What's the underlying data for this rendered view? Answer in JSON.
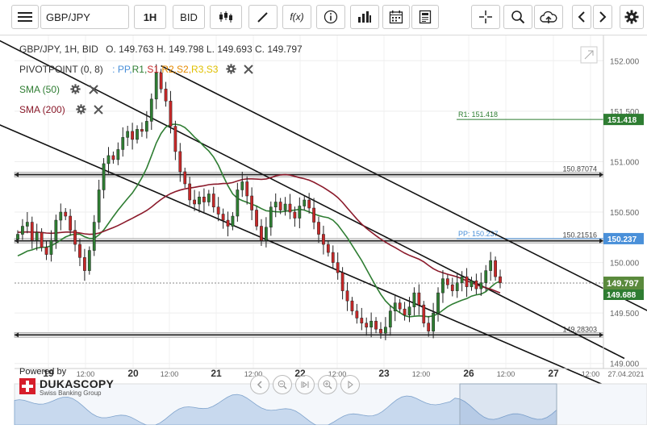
{
  "toolbar": {
    "symbol": "GBP/JPY",
    "timeframe": "1H",
    "price_type": "BID",
    "fx_label": "f(x)"
  },
  "legend": {
    "title_line": "GBP/JPY, 1H, BID",
    "ohlc": "O. 149.763 H. 149.798 L. 149.693 C. 149.797",
    "pivot_label": "PIVOTPOINT (0, 8)",
    "pivot_items": [
      {
        "text": ": PP,",
        "color": "#4a90d9"
      },
      {
        "text": "R1,",
        "color": "#2e7d32"
      },
      {
        "text": "S1,",
        "color": "#c62828"
      },
      {
        "text": "R2,",
        "color": "#e68a00"
      },
      {
        "text": "S2,",
        "color": "#e68a00"
      },
      {
        "text": "R3,",
        "color": "#e0c000"
      },
      {
        "text": "S3",
        "color": "#e0c000"
      }
    ],
    "sma50": "SMA (50)",
    "sma200": "SMA (200)"
  },
  "branding": {
    "powered_by": "Powered by",
    "brand": "DUKASCOPY",
    "sub": "Swiss Banking Group"
  },
  "colors": {
    "sma50": "#2e7d32",
    "sma200": "#8b1a2b",
    "pp": "#4a90d9",
    "r1": "#2e7d32",
    "bull": "#2e7d32",
    "bear": "#c62828"
  },
  "chart_data": {
    "type": "candlestick",
    "ylim": [
      148.95,
      152.25
    ],
    "y_ticks": [
      "149.000",
      "149.500",
      "150.000",
      "150.500",
      "151.000",
      "151.500",
      "152.000"
    ],
    "x_ticks": [
      "19",
      "12:00",
      "20",
      "12:00",
      "21",
      "12:00",
      "22",
      "12:00",
      "23",
      "12:00",
      "26",
      "12:00",
      "27",
      "12:00",
      "27.04.2021"
    ],
    "last_price": "149.797",
    "last_price_alt": "149.688",
    "horizontal_lines": [
      {
        "label": "150.87074",
        "value": 150.871
      },
      {
        "label": "150.21516",
        "value": 150.215
      },
      {
        "label": "149.28303",
        "value": 149.283
      }
    ],
    "pivot_levels": [
      {
        "label": "R1: 151.418",
        "tag": "151.418",
        "value": 151.418
      },
      {
        "label": "PP: 150.237",
        "tag": "150.237",
        "value": 150.237
      }
    ],
    "candles": [
      150.28,
      150.36,
      150.4,
      150.22,
      150.3,
      150.15,
      150.08,
      150.22,
      150.42,
      150.5,
      150.46,
      150.32,
      150.18,
      150.05,
      149.92,
      150.12,
      150.4,
      150.72,
      150.98,
      151.06,
      151.02,
      151.12,
      151.24,
      151.3,
      151.22,
      151.32,
      151.3,
      151.4,
      151.62,
      151.88,
      151.72,
      151.6,
      151.35,
      151.1,
      150.9,
      150.78,
      150.62,
      150.58,
      150.65,
      150.6,
      150.68,
      150.55,
      150.48,
      150.42,
      150.36,
      150.46,
      150.72,
      150.8,
      150.66,
      150.52,
      150.36,
      150.22,
      150.35,
      150.55,
      150.6,
      150.52,
      150.58,
      150.5,
      150.44,
      150.56,
      150.62,
      150.54,
      150.4,
      150.28,
      150.18,
      150.1,
      150.0,
      149.9,
      149.72,
      149.62,
      149.52,
      149.45,
      149.4,
      149.36,
      149.42,
      149.34,
      149.3,
      149.36,
      149.52,
      149.6,
      149.54,
      149.48,
      149.56,
      149.7,
      149.58,
      149.4,
      149.32,
      149.5,
      149.7,
      149.84,
      149.78,
      149.72,
      149.8,
      149.86,
      149.76,
      149.82,
      149.74,
      149.8,
      149.92,
      150.02,
      149.86,
      149.8
    ]
  }
}
